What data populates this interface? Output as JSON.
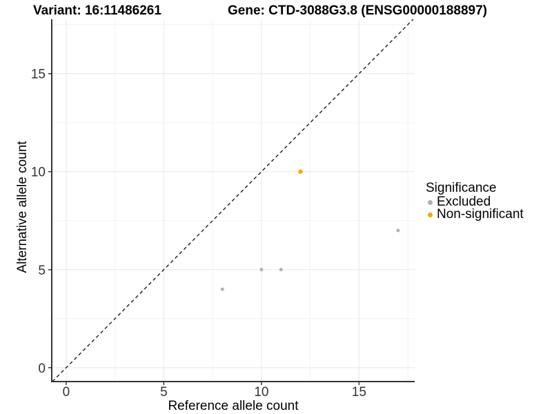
{
  "chart_data": {
    "type": "scatter",
    "title_left": "Variant: 16:11486261",
    "title_right": "Gene: CTD-3088G3.8 (ENSG00000188897)",
    "xlabel": "Reference allele count",
    "ylabel": "Alternative allele count",
    "xlim": [
      -0.74,
      17.85
    ],
    "ylim": [
      -0.71,
      17.77
    ],
    "xticks": [
      0,
      5,
      10,
      15
    ],
    "yticks": [
      0,
      5,
      10,
      15
    ],
    "minor_xticks": [
      2.5,
      7.5,
      12.5,
      17.5
    ],
    "minor_yticks": [
      2.5,
      7.5,
      12.5,
      17.5
    ],
    "grid": "major and minor, light gray on white panel",
    "identity_line": {
      "equation": "y = x",
      "style": "dashed",
      "color": "#1a1a1a"
    },
    "legend": {
      "title": "Significance",
      "position": "right"
    },
    "series": [
      {
        "name": "Excluded",
        "color": "#b0b0b0",
        "marker": "circle",
        "radius": 2.5,
        "points": [
          [
            8,
            4
          ],
          [
            10,
            5
          ],
          [
            11,
            5
          ],
          [
            17,
            7
          ]
        ]
      },
      {
        "name": "Non-significant",
        "color": "#ffa500",
        "marker": "circle",
        "radius": 3.2,
        "points": [
          [
            12,
            10
          ]
        ]
      }
    ]
  },
  "style_colors": {
    "grid_major": "#e7e7e7",
    "grid_minor": "#f3f3f3",
    "axis_line": "#333333",
    "tick_label": "#333333",
    "background": "#ffffff"
  }
}
